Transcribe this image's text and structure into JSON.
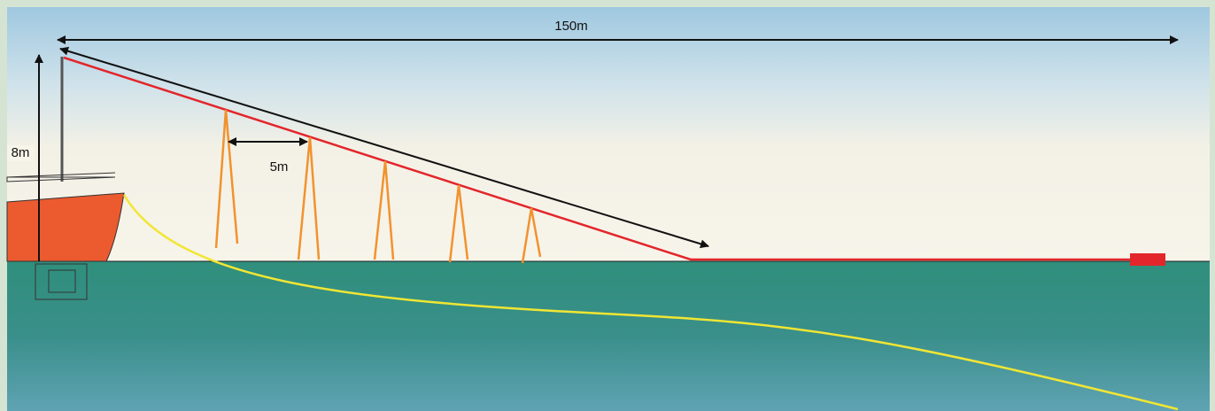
{
  "labels": {
    "total_length": "150m",
    "mast_height": "8m",
    "spacing": "5m"
  }
}
